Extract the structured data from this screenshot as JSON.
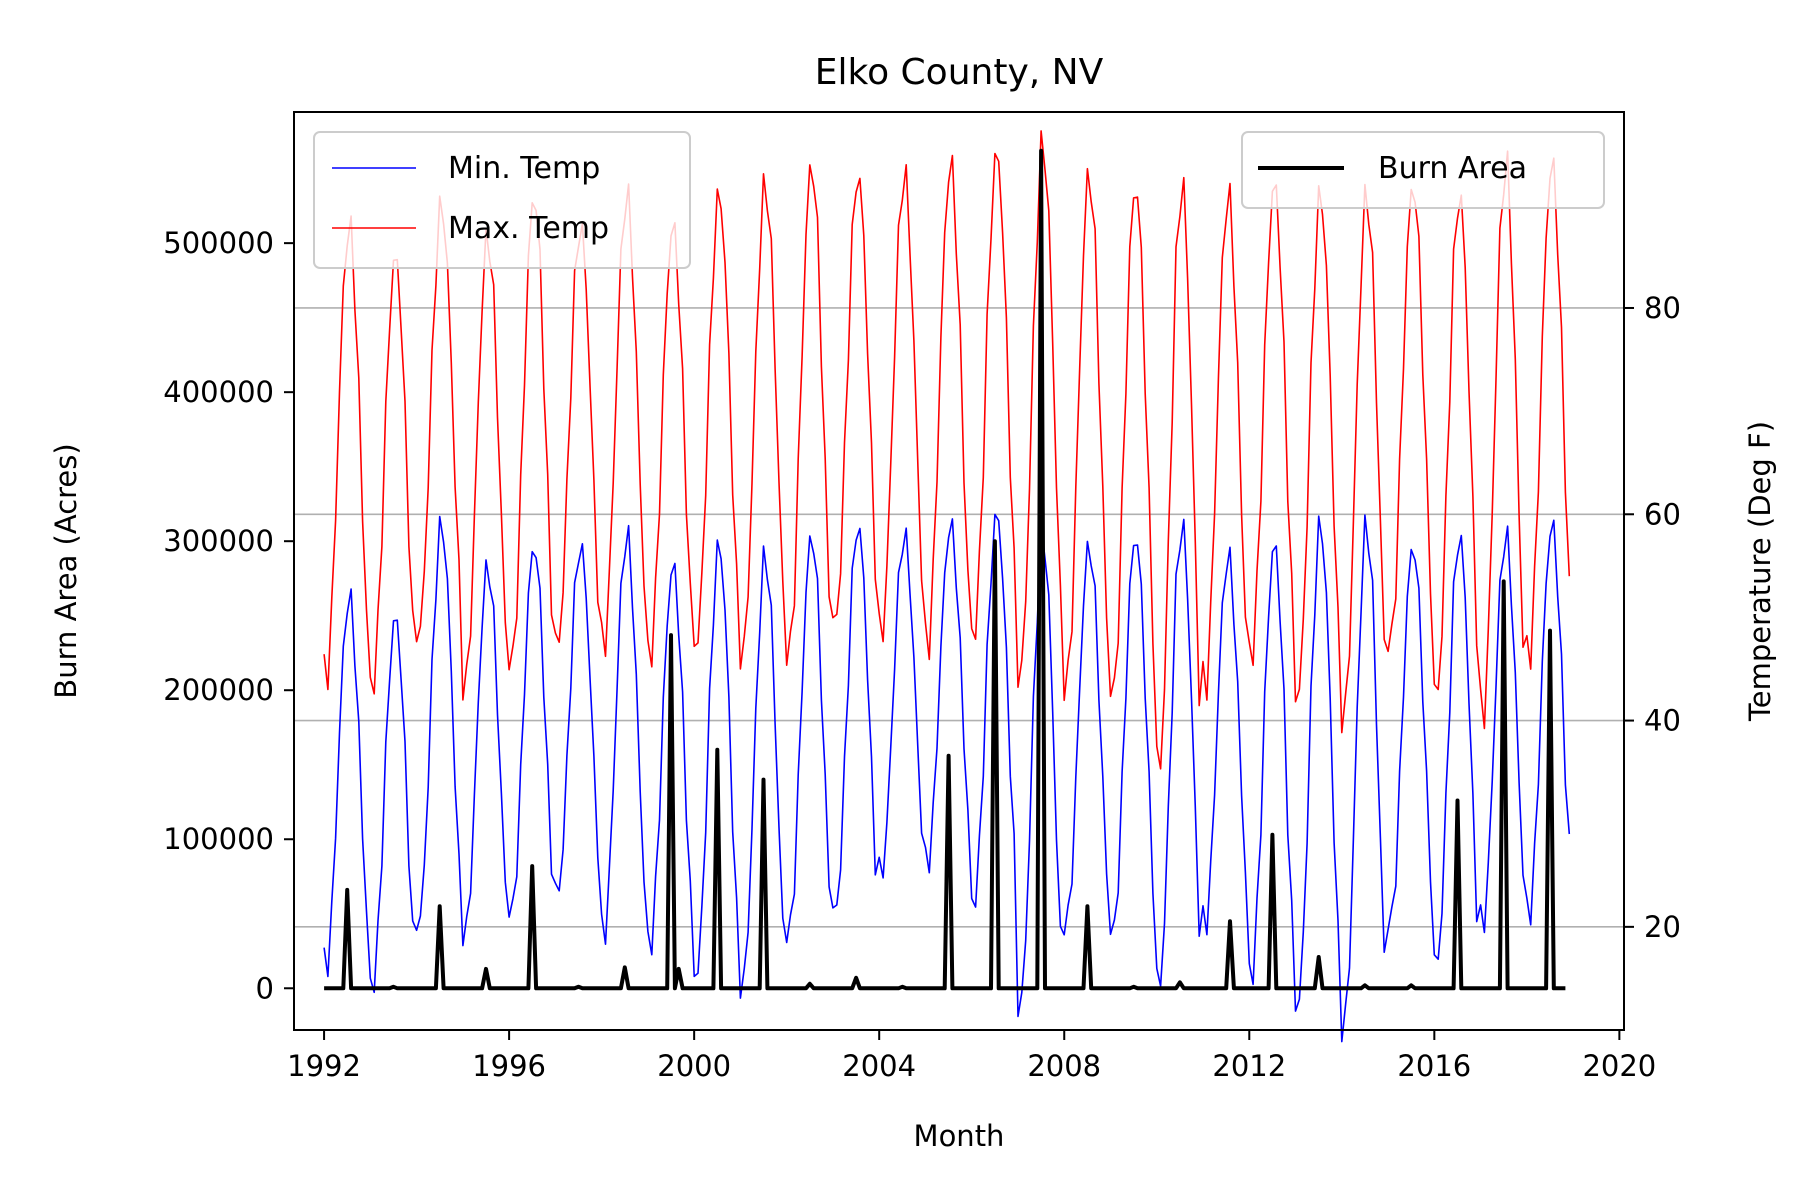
{
  "chart_data": {
    "type": "line",
    "title": "Elko County, NV",
    "xlabel": "Month",
    "ylabel_left": "Burn Area (Acres)",
    "ylabel_right": "Temperature (Deg F)",
    "x_ticks": [
      "1992",
      "1996",
      "2000",
      "2004",
      "2008",
      "2012",
      "2016",
      "2020"
    ],
    "x_range": [
      1991.35,
      2020.1
    ],
    "y_left_ticks": [
      "0",
      "100000",
      "200000",
      "300000",
      "400000",
      "500000"
    ],
    "y_left_range": [
      -28000,
      588000
    ],
    "y_right_ticks": [
      "20",
      "40",
      "60",
      "80"
    ],
    "y_right_range": [
      10,
      99
    ],
    "grid": "right-axis horizontal lines",
    "legend_left": {
      "position": "top-left",
      "entries": [
        "Min. Temp",
        "Max. Temp"
      ]
    },
    "legend_right": {
      "position": "top-right",
      "entries": [
        "Burn Area"
      ]
    },
    "series": [
      {
        "name": "Min. Temp",
        "axis": "right",
        "color": "#0000ff",
        "yearly_min": [
          16,
          14,
          20,
          19,
          21,
          23,
          19,
          18,
          15,
          14,
          19,
          21,
          25,
          26,
          22,
          12,
          20,
          19,
          14,
          20,
          15,
          12,
          10,
          20,
          16,
          20,
          21
        ],
        "yearly_max": [
          52,
          50,
          59,
          55,
          57,
          57,
          58,
          55,
          57,
          56,
          58,
          59,
          58,
          59,
          60,
          58,
          57,
          58,
          59,
          56,
          57,
          59,
          59,
          57,
          58,
          58,
          59
        ],
        "last_month": 29
      },
      {
        "name": "Max. Temp",
        "axis": "right",
        "color": "#ff0000",
        "yearly_min": [
          44,
          43,
          48,
          43,
          45,
          47,
          47,
          46,
          47,
          46,
          46,
          49,
          48,
          47,
          48,
          44,
          43,
          42,
          35,
          43,
          46,
          42,
          40,
          47,
          42,
          40,
          46
        ],
        "yearly_max": [
          88,
          85,
          90,
          87,
          91,
          88,
          91,
          88,
          91,
          92,
          94,
          93,
          93,
          94,
          95,
          96,
          93,
          92,
          92,
          91,
          92,
          91,
          91,
          92,
          91,
          94,
          94
        ],
        "last_month": 54
      },
      {
        "name": "Burn Area",
        "axis": "left",
        "color": "#000000",
        "baseline": 0,
        "spikes": [
          {
            "year": 1992,
            "month": 7,
            "value": 66000
          },
          {
            "year": 1993,
            "month": 7,
            "value": 1000
          },
          {
            "year": 1994,
            "month": 7,
            "value": 55000
          },
          {
            "year": 1995,
            "month": 7,
            "value": 13000
          },
          {
            "year": 1996,
            "month": 7,
            "value": 82000
          },
          {
            "year": 1997,
            "month": 7,
            "value": 1000
          },
          {
            "year": 1998,
            "month": 7,
            "value": 14000
          },
          {
            "year": 1999,
            "month": 7,
            "value": 237000
          },
          {
            "year": 1999,
            "month": 9,
            "value": 13000
          },
          {
            "year": 2000,
            "month": 7,
            "value": 160000
          },
          {
            "year": 2001,
            "month": 7,
            "value": 140000
          },
          {
            "year": 2002,
            "month": 7,
            "value": 3000
          },
          {
            "year": 2003,
            "month": 7,
            "value": 7000
          },
          {
            "year": 2004,
            "month": 7,
            "value": 1000
          },
          {
            "year": 2005,
            "month": 7,
            "value": 156000
          },
          {
            "year": 2006,
            "month": 7,
            "value": 300000
          },
          {
            "year": 2007,
            "month": 7,
            "value": 562000
          },
          {
            "year": 2008,
            "month": 7,
            "value": 55000
          },
          {
            "year": 2009,
            "month": 7,
            "value": 1000
          },
          {
            "year": 2010,
            "month": 7,
            "value": 4000
          },
          {
            "year": 2011,
            "month": 8,
            "value": 45000
          },
          {
            "year": 2012,
            "month": 7,
            "value": 103000
          },
          {
            "year": 2013,
            "month": 7,
            "value": 21000
          },
          {
            "year": 2014,
            "month": 7,
            "value": 2000
          },
          {
            "year": 2015,
            "month": 7,
            "value": 2000
          },
          {
            "year": 2016,
            "month": 7,
            "value": 126000
          },
          {
            "year": 2017,
            "month": 7,
            "value": 273000
          },
          {
            "year": 2018,
            "month": 7,
            "value": 240000
          }
        ],
        "end_year": 2018,
        "end_month": 11
      }
    ]
  }
}
